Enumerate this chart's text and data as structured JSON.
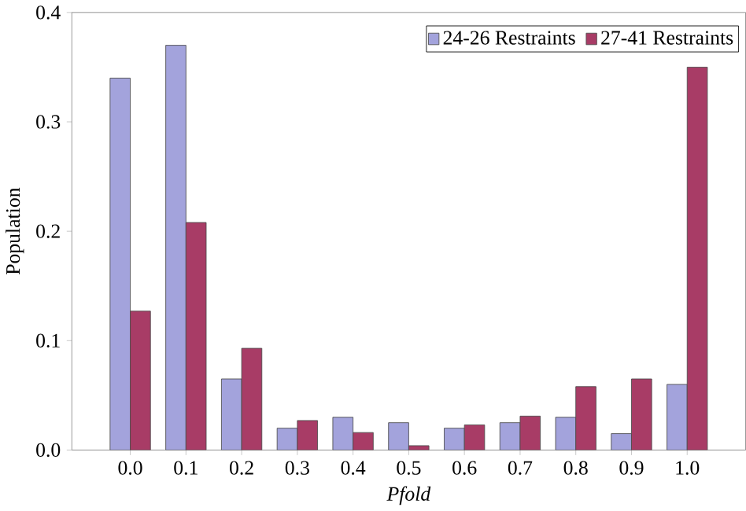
{
  "chart_data": {
    "type": "bar",
    "xlabel": "*Pfold*",
    "ylabel": "Population",
    "categories": [
      "0.0",
      "0.1",
      "0.2",
      "0.3",
      "0.4",
      "0.5",
      "0.6",
      "0.7",
      "0.8",
      "0.9",
      "1.0"
    ],
    "series": [
      {
        "name": "24-26 Restraints",
        "color": "#a3a3dc",
        "values": [
          0.34,
          0.37,
          0.065,
          0.02,
          0.03,
          0.025,
          0.02,
          0.025,
          0.03,
          0.015,
          0.06
        ]
      },
      {
        "name": "27-41 Restraints",
        "color": "#a83c66",
        "values": [
          0.127,
          0.208,
          0.093,
          0.027,
          0.016,
          0.004,
          0.023,
          0.031,
          0.058,
          0.065,
          0.35
        ]
      }
    ],
    "ylim": [
      0,
      0.4
    ],
    "yticks": [
      {
        "value": 0,
        "label": "0.0"
      },
      {
        "value": 0.1,
        "label": "0.1"
      },
      {
        "value": 0.2,
        "label": "0.2"
      },
      {
        "value": 0.3,
        "label": "0.3"
      },
      {
        "value": 0.4,
        "label": "0.4"
      }
    ],
    "legend": "top right"
  }
}
